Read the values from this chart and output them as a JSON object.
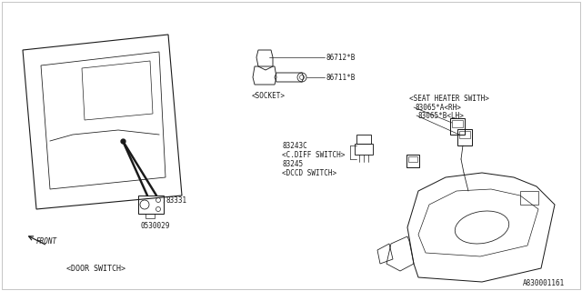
{
  "bg_color": "#ffffff",
  "line_color": "#1a1a1a",
  "fig_width": 6.4,
  "fig_height": 3.2,
  "ref_number": "A830001161",
  "labels": {
    "door_switch": "<DOOR SWITCH>",
    "socket": "<SOCKET>",
    "seat_heater": "<SEAT HEATER SWITH>",
    "c_diff_switch": "<C.DIFF SWITCH>",
    "dccd_switch": "<DCCD SWITCH>",
    "front": "FRONT",
    "p83331": "83331",
    "p0530029": "0530029",
    "p86712B": "86712*B",
    "p86711B": "86711*B",
    "p83243C": "83243C",
    "p83245": "83245",
    "p93065A": "83065*A<RH>",
    "p93065B": "83065*B<LH>"
  }
}
